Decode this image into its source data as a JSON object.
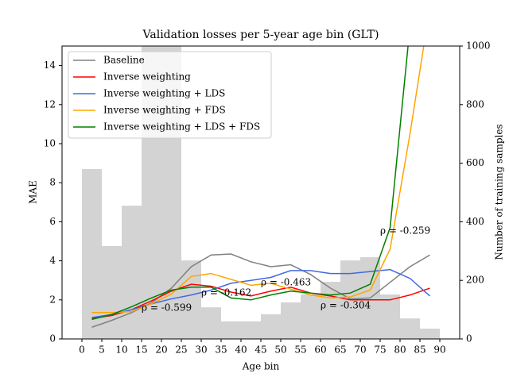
{
  "chart_data": {
    "type": "line",
    "title": "Validation losses per 5-year age bin (GLT)",
    "x_label": "Age bin",
    "y_label": "MAE",
    "y2_label": "Number of training samples",
    "x": [
      2.5,
      7.5,
      12.5,
      17.5,
      22.5,
      27.5,
      32.5,
      37.5,
      42.5,
      47.5,
      52.5,
      57.5,
      62.5,
      67.5,
      72.5,
      77.5,
      82.5,
      87.5
    ],
    "series": [
      {
        "name": "Baseline",
        "color": "#808080",
        "values": [
          0.6,
          0.95,
          1.35,
          1.85,
          2.6,
          3.7,
          4.3,
          4.35,
          3.95,
          3.7,
          3.8,
          3.3,
          2.6,
          2.05,
          2.1,
          2.9,
          3.7,
          4.3
        ]
      },
      {
        "name": "Inverse weighting",
        "color": "#ff0000",
        "values": [
          1.05,
          1.2,
          1.5,
          1.95,
          2.45,
          2.8,
          2.7,
          2.4,
          2.2,
          2.45,
          2.65,
          2.35,
          2.2,
          2.0,
          2.0,
          2.0,
          2.25,
          2.6
        ]
      },
      {
        "name": "Inverse weighting + LDS",
        "color": "#4169e1",
        "values": [
          1.1,
          1.25,
          1.5,
          1.8,
          2.05,
          2.25,
          2.5,
          2.85,
          3.0,
          3.15,
          3.5,
          3.5,
          3.35,
          3.35,
          3.45,
          3.55,
          3.1,
          2.2
        ]
      },
      {
        "name": "Inverse weighting + FDS",
        "color": "#ffa500",
        "values": [
          1.35,
          1.35,
          1.4,
          1.8,
          2.3,
          3.2,
          3.35,
          3.05,
          2.75,
          2.85,
          2.55,
          2.25,
          2.1,
          2.15,
          2.5,
          4.6,
          10.5,
          17
        ]
      },
      {
        "name": "Inverse weighting + LDS + FDS",
        "color": "#008000",
        "values": [
          1.0,
          1.25,
          1.65,
          2.1,
          2.5,
          2.65,
          2.65,
          2.1,
          2.0,
          2.25,
          2.45,
          2.35,
          2.25,
          2.35,
          2.8,
          5.7,
          16,
          26
        ]
      }
    ],
    "histogram": {
      "axis": "y2",
      "color": "#d3d3d3",
      "bins": [
        0,
        5,
        10,
        15,
        20,
        25,
        30,
        35,
        40,
        45,
        50,
        55,
        60,
        65,
        70,
        75,
        80,
        85,
        90
      ],
      "counts": [
        580,
        317,
        455,
        1200,
        1100,
        268,
        108,
        60,
        60,
        84,
        125,
        152,
        195,
        268,
        279,
        152,
        70,
        35
      ]
    },
    "annotations": [
      {
        "text": "ρ = -0.599",
        "color": "#808080"
      },
      {
        "text": "ρ = -0.162",
        "color": "#ff0000"
      },
      {
        "text": "ρ = -0.463",
        "color": "#4169e1"
      },
      {
        "text": "ρ = -0.304",
        "color": "#ffa500"
      },
      {
        "text": "ρ = -0.259",
        "color": "#008000"
      }
    ],
    "xlim": [
      -5,
      95
    ],
    "xticks": [
      0,
      5,
      10,
      15,
      20,
      25,
      30,
      35,
      40,
      45,
      50,
      55,
      60,
      65,
      70,
      75,
      80,
      85,
      90
    ],
    "ylim": [
      0,
      15
    ],
    "yticks": [
      0,
      2,
      4,
      6,
      8,
      10,
      12,
      14
    ],
    "y2lim": [
      0,
      1000
    ],
    "y2ticks": [
      0,
      200,
      400,
      600,
      800,
      1000
    ],
    "legend": "upper left"
  }
}
